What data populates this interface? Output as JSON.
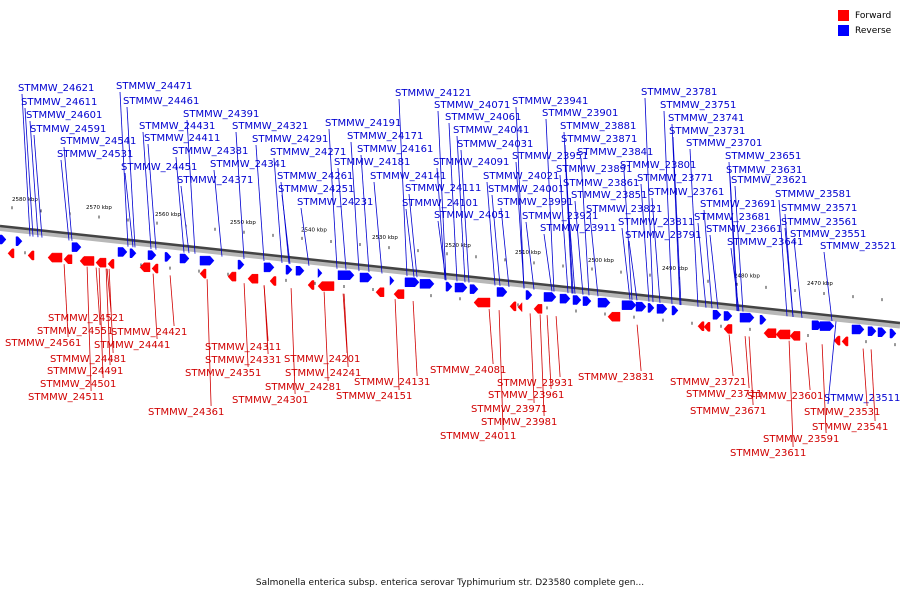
{
  "legend": {
    "forward": {
      "label": "Forward",
      "color": "#ff0000"
    },
    "reverse": {
      "label": "Reverse",
      "color": "#0000ff"
    }
  },
  "caption": "Salmonella enterica subsp. enterica serovar Typhimurium str. D23580 complete gen...",
  "ruler_ticks": [
    "2580 kbp",
    "2570 kbp",
    "2560 kbp",
    "2550 kbp",
    "2540 kbp",
    "2530 kbp",
    "2520 kbp",
    "2510 kbp",
    "2500 kbp",
    "2490 kbp",
    "2480 kbp",
    "2470 kbp"
  ],
  "reverse_genes": [
    "STMMW_24621",
    "STMMW_24611",
    "STMMW_24601",
    "STMMW_24591",
    "STMMW_24541",
    "STMMW_24531",
    "STMMW_24471",
    "STMMW_24461",
    "STMMW_24391",
    "STMMW_24431",
    "STMMW_24411",
    "STMMW_24451",
    "STMMW_24381",
    "STMMW_24341",
    "STMMW_24371",
    "STMMW_24321",
    "STMMW_24291",
    "STMMW_24271",
    "STMMW_24261",
    "STMMW_24251",
    "STMMW_24231",
    "STMMW_24191",
    "STMMW_24171",
    "STMMW_24161",
    "STMMW_24181",
    "STMMW_24141",
    "STMMW_24111",
    "STMMW_24101",
    "STMMW_24121",
    "STMMW_24071",
    "STMMW_24061",
    "STMMW_24041",
    "STMMW_24031",
    "STMMW_24091",
    "STMMW_24021",
    "STMMW_24001",
    "STMMW_24051",
    "STMMW_23991",
    "STMMW_23941",
    "STMMW_23901",
    "STMMW_23881",
    "STMMW_23871",
    "STMMW_23951",
    "STMMW_23891",
    "STMMW_23861",
    "STMMW_23851",
    "STMMW_23921",
    "STMMW_23911",
    "STMMW_23841",
    "STMMW_23821",
    "STMMW_23811",
    "STMMW_23781",
    "STMMW_23751",
    "STMMW_23741",
    "STMMW_23731",
    "STMMW_23801",
    "STMMW_23771",
    "STMMW_23761",
    "STMMW_23791",
    "STMMW_23701",
    "STMMW_23651",
    "STMMW_23631",
    "STMMW_23621",
    "STMMW_23691",
    "STMMW_23681",
    "STMMW_23661",
    "STMMW_23641",
    "STMMW_23581",
    "STMMW_23571",
    "STMMW_23561",
    "STMMW_23551",
    "STMMW_23521",
    "STMMW_23511"
  ],
  "forward_genes": [
    "STMMW_24521",
    "STMMW_24551",
    "STMMW_24561",
    "STMMW_24421",
    "STMMW_24441",
    "STMMW_24481",
    "STMMW_24491",
    "STMMW_24501",
    "STMMW_24511",
    "STMMW_24311",
    "STMMW_24331",
    "STMMW_24351",
    "STMMW_24361",
    "STMMW_24201",
    "STMMW_24281",
    "STMMW_24301",
    "STMMW_24241",
    "STMMW_24131",
    "STMMW_24151",
    "STMMW_24081",
    "STMMW_23931",
    "STMMW_23961",
    "STMMW_23971",
    "STMMW_23981",
    "STMMW_24011",
    "STMMW_23831",
    "STMMW_23721",
    "STMMW_23711",
    "STMMW_23671",
    "STMMW_23601",
    "STMMW_23591",
    "STMMW_23611",
    "STMMW_23531",
    "STMMW_23541"
  ]
}
